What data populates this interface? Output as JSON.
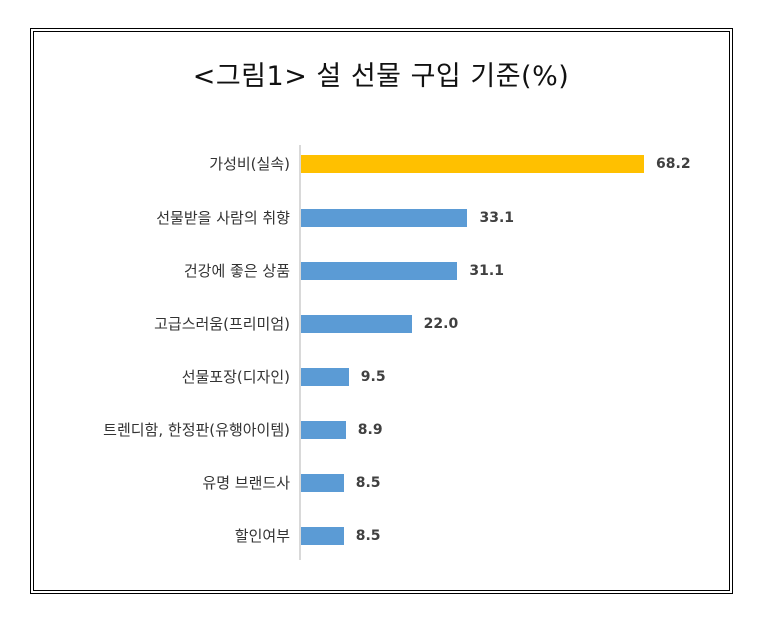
{
  "title": "<그림1> 설 선물 구입 기준(%)",
  "colors": {
    "highlight": "#FFC000",
    "default": "#5B9BD5",
    "axis": "#D9D9D9"
  },
  "chart_data": {
    "type": "bar",
    "orientation": "horizontal",
    "title": "<그림1> 설 선물 구입 기준(%)",
    "xlabel": "",
    "ylabel": "",
    "unit": "%",
    "grid": false,
    "legend": null,
    "categories": [
      "가성비(실속)",
      "선물받을 사람의 취향",
      "건강에 좋은 상품",
      "고급스러움(프리미엄)",
      "선물포장(디자인)",
      "트렌디함, 한정판(유행아이템)",
      "유명 브랜드사",
      "할인여부"
    ],
    "values": [
      68.2,
      33.1,
      31.1,
      22.0,
      9.5,
      8.9,
      8.5,
      8.5
    ],
    "value_labels": [
      "68.2",
      "33.1",
      "31.1",
      "22.0",
      "9.5",
      "8.9",
      "8.5",
      "8.5"
    ],
    "bar_colors": [
      "#FFC000",
      "#5B9BD5",
      "#5B9BD5",
      "#5B9BD5",
      "#5B9BD5",
      "#5B9BD5",
      "#5B9BD5",
      "#5B9BD5"
    ]
  }
}
